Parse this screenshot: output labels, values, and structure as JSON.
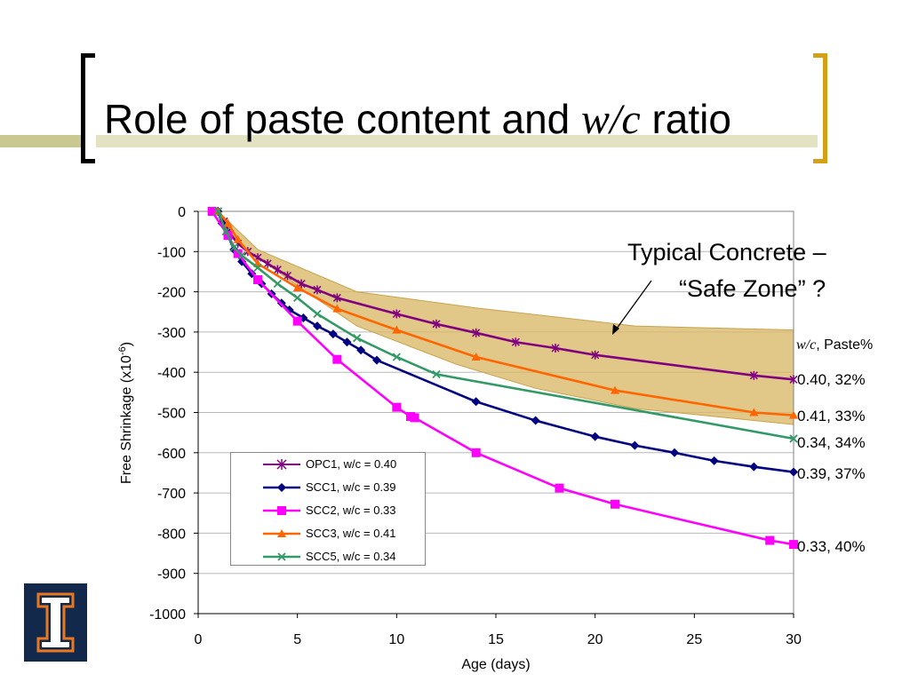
{
  "slide": {
    "title_prefix": "Role of paste content and ",
    "title_italic": "w/c",
    "title_suffix": " ratio",
    "annotation_line1": "Typical Concrete –",
    "annotation_line2": "“Safe Zone” ?",
    "paste_header_italic": "w/c",
    "paste_header_rest": ", Paste%",
    "end_labels": [
      "0.40, 32%",
      "0.41, 33%",
      "0.34, 34%",
      "0.39, 37%",
      "0.33, 40%"
    ],
    "colors": {
      "bracket_left": "#000000",
      "bracket_right": "#d4a017",
      "band": "#d9b96a",
      "logo_bg": "#13294b",
      "logo_accent": "#e87722"
    },
    "logo_icon": "illinois-block-i-logo"
  },
  "chart_data": {
    "type": "line",
    "xlabel": "Age (days)",
    "ylabel_main": "Free Shrinkage (x10",
    "ylabel_sup": "-6",
    "ylabel_end": ")",
    "xlim": [
      0,
      30
    ],
    "ylim": [
      -1000,
      0
    ],
    "xticks": [
      0,
      5,
      10,
      15,
      20,
      25,
      30
    ],
    "yticks": [
      0,
      -100,
      -200,
      -300,
      -400,
      -500,
      -600,
      -700,
      -800,
      -900,
      -1000
    ],
    "grid": "horizontal",
    "legend_position": "bottom-left",
    "band": {
      "label": "Typical Concrete – “Safe Zone” ?",
      "upper": [
        [
          1,
          0
        ],
        [
          3,
          -95
        ],
        [
          8,
          -200
        ],
        [
          14,
          -240
        ],
        [
          22,
          -285
        ],
        [
          30,
          -295
        ]
      ],
      "lower": [
        [
          30,
          -530
        ],
        [
          22,
          -490
        ],
        [
          17,
          -440
        ],
        [
          13,
          -380
        ],
        [
          8,
          -285
        ],
        [
          5,
          -185
        ],
        [
          2,
          -80
        ],
        [
          1,
          0
        ]
      ]
    },
    "series": [
      {
        "name": "OPC1, w/c = 0.40",
        "color": "#800080",
        "marker": "star",
        "points": [
          [
            1,
            0
          ],
          [
            1.3,
            -25
          ],
          [
            1.6,
            -55
          ],
          [
            2,
            -80
          ],
          [
            2.5,
            -100
          ],
          [
            3,
            -115
          ],
          [
            3.5,
            -130
          ],
          [
            4,
            -145
          ],
          [
            4.5,
            -160
          ],
          [
            5.2,
            -180
          ],
          [
            6,
            -195
          ],
          [
            7,
            -215
          ],
          [
            10,
            -255
          ],
          [
            12,
            -280
          ],
          [
            14,
            -302
          ],
          [
            16,
            -325
          ],
          [
            18,
            -340
          ],
          [
            20,
            -357
          ],
          [
            28,
            -408
          ],
          [
            30,
            -418
          ]
        ]
      },
      {
        "name": "SCC1, w/c = 0.39",
        "color": "#000080",
        "marker": "diamond",
        "points": [
          [
            1,
            0
          ],
          [
            1.2,
            -30
          ],
          [
            1.5,
            -60
          ],
          [
            1.8,
            -95
          ],
          [
            2.2,
            -125
          ],
          [
            2.7,
            -155
          ],
          [
            3.2,
            -180
          ],
          [
            3.7,
            -205
          ],
          [
            4.2,
            -228
          ],
          [
            4.6,
            -245
          ],
          [
            5.3,
            -265
          ],
          [
            6,
            -285
          ],
          [
            6.8,
            -305
          ],
          [
            7.5,
            -325
          ],
          [
            8.2,
            -345
          ],
          [
            9,
            -370
          ],
          [
            14,
            -473
          ],
          [
            17,
            -520
          ],
          [
            20,
            -560
          ],
          [
            22,
            -582
          ],
          [
            24,
            -600
          ],
          [
            26,
            -620
          ],
          [
            28,
            -635
          ],
          [
            30,
            -648
          ]
        ]
      },
      {
        "name": "SCC2, w/c = 0.33",
        "color": "#ff00ff",
        "marker": "square",
        "points": [
          [
            0.7,
            0
          ],
          [
            1.5,
            -60
          ],
          [
            2,
            -105
          ],
          [
            3,
            -170
          ],
          [
            5,
            -273
          ],
          [
            7,
            -368
          ],
          [
            10,
            -487
          ],
          [
            10.7,
            -510
          ],
          [
            10.9,
            -513
          ],
          [
            14,
            -600
          ],
          [
            18.2,
            -688
          ],
          [
            21,
            -728
          ],
          [
            28.8,
            -818
          ],
          [
            30,
            -828
          ]
        ]
      },
      {
        "name": "SCC3, w/c = 0.41",
        "color": "#ff6600",
        "marker": "triangle",
        "points": [
          [
            1,
            0
          ],
          [
            1.5,
            -30
          ],
          [
            2,
            -70
          ],
          [
            3,
            -130
          ],
          [
            5,
            -190
          ],
          [
            7,
            -242
          ],
          [
            10,
            -295
          ],
          [
            14,
            -362
          ],
          [
            21,
            -445
          ],
          [
            28,
            -500
          ],
          [
            30,
            -507
          ]
        ]
      },
      {
        "name": "SCC5, w/c = 0.34",
        "color": "#339966",
        "marker": "x",
        "points": [
          [
            1,
            0
          ],
          [
            1.4,
            -50
          ],
          [
            1.8,
            -90
          ],
          [
            2.2,
            -110
          ],
          [
            3,
            -140
          ],
          [
            4,
            -180
          ],
          [
            5,
            -215
          ],
          [
            6,
            -255
          ],
          [
            8,
            -315
          ],
          [
            10,
            -362
          ],
          [
            12,
            -405
          ],
          [
            30,
            -565
          ]
        ]
      }
    ]
  }
}
